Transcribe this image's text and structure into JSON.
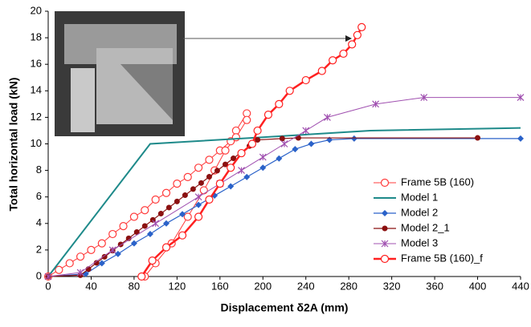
{
  "chart_data": {
    "type": "line",
    "xlabel": "Displacement δ2A (mm)",
    "ylabel": "Total horizontal load (kN)",
    "xlim": [
      0,
      440
    ],
    "xticks": [
      0,
      40,
      80,
      120,
      160,
      200,
      240,
      280,
      320,
      360,
      400,
      440
    ],
    "ylim": [
      0,
      20
    ],
    "yticks": [
      0,
      2,
      4,
      6,
      8,
      10,
      12,
      14,
      16,
      18,
      20
    ],
    "legend": "lower right",
    "series": [
      {
        "name": "Frame 5B (160)",
        "color": "#ff3b3b",
        "marker": "open-circle",
        "width": 1,
        "x": [
          0,
          10,
          20,
          30,
          40,
          50,
          60,
          70,
          80,
          90,
          100,
          110,
          120,
          130,
          140,
          150,
          160,
          170,
          175,
          185,
          185,
          175,
          165,
          155,
          145,
          130,
          115,
          100,
          90
        ],
        "values": [
          0,
          0.5,
          1,
          1.5,
          2,
          2.5,
          3.2,
          3.8,
          4.5,
          5,
          5.8,
          6.3,
          7,
          7.5,
          8.2,
          8.8,
          9.5,
          10.2,
          11,
          12.3,
          11.8,
          10.5,
          9.5,
          8,
          6.5,
          4.5,
          2.5,
          1,
          0
        ]
      },
      {
        "name": "Model 1",
        "color": "#1e8a8a",
        "marker": "none",
        "width": 2,
        "x": [
          0,
          95,
          200,
          300,
          440
        ],
        "values": [
          0,
          10,
          10.5,
          11,
          11.2
        ]
      },
      {
        "name": "Model 2",
        "color": "#2a62c9",
        "marker": "diamond",
        "width": 1.2,
        "x": [
          0,
          35,
          50,
          65,
          80,
          95,
          110,
          125,
          140,
          155,
          170,
          185,
          200,
          215,
          230,
          245,
          262,
          285,
          440
        ],
        "values": [
          0,
          0.2,
          1,
          1.7,
          2.5,
          3.2,
          4,
          4.7,
          5.4,
          6.1,
          6.8,
          7.5,
          8.2,
          8.9,
          9.6,
          10,
          10.3,
          10.4,
          10.4
        ]
      },
      {
        "name": "Model 2_1",
        "color": "#8b1010",
        "marker": "circle",
        "width": 1.2,
        "x": [
          0,
          30,
          37.5,
          45,
          52.5,
          60,
          67.5,
          75,
          82.5,
          90,
          97.5,
          105,
          112.5,
          120,
          127.5,
          135,
          142.5,
          150,
          157.5,
          165,
          172.5,
          180,
          187.5,
          195,
          218,
          233,
          400
        ],
        "values": [
          0,
          0.1,
          0.56,
          1.03,
          1.49,
          1.95,
          2.42,
          2.88,
          3.35,
          3.81,
          4.27,
          4.74,
          5.2,
          5.66,
          6.13,
          6.59,
          7.05,
          7.52,
          7.98,
          8.45,
          8.91,
          9.37,
          9.84,
          10.3,
          10.4,
          10.45,
          10.45
        ]
      },
      {
        "name": "Model 3",
        "color": "#a050b0",
        "marker": "star",
        "width": 1,
        "x": [
          0,
          30,
          60,
          100,
          140,
          160,
          180,
          200,
          220,
          240,
          260,
          305,
          350,
          440
        ],
        "values": [
          0,
          0.3,
          2,
          4,
          6,
          7,
          8,
          9,
          10,
          11,
          12,
          13,
          13.5,
          13.5
        ]
      },
      {
        "name": "Frame 5B (160)_f",
        "color": "#ff2020",
        "marker": "open-circle",
        "width": 2.5,
        "x": [
          87,
          97,
          110,
          125,
          140,
          150,
          160,
          170,
          180,
          190,
          195,
          205,
          215,
          225,
          240,
          255,
          265,
          275,
          283,
          288,
          292
        ],
        "values": [
          0,
          1.2,
          2.2,
          3.1,
          4.5,
          5.8,
          7,
          8.2,
          9.3,
          10,
          11,
          12.2,
          13,
          14,
          14.8,
          15.5,
          16.3,
          16.8,
          17.5,
          18.2,
          18.8
        ]
      }
    ]
  }
}
